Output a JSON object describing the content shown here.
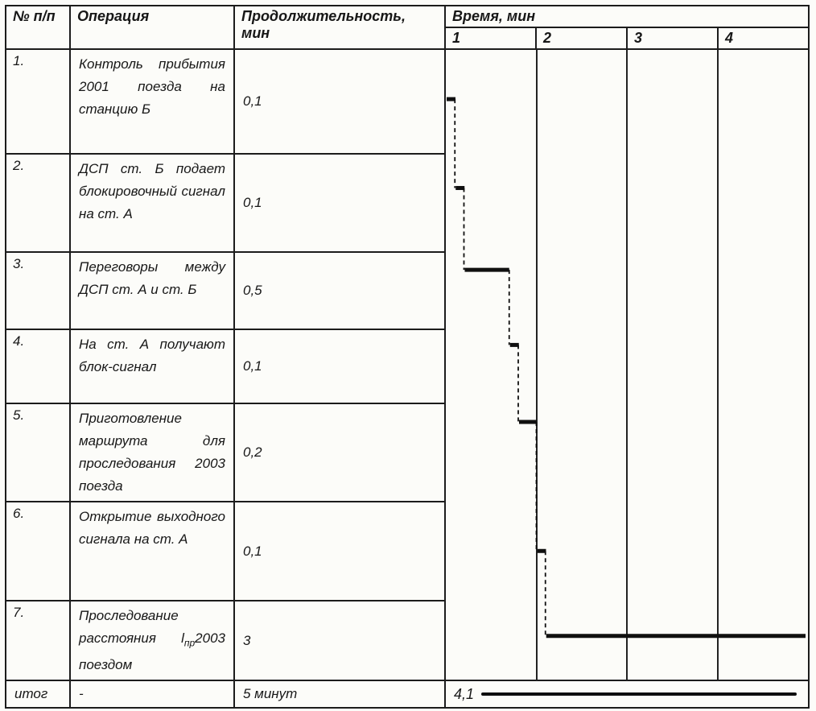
{
  "page": {
    "paper_color": "#fcfcf9",
    "ink_color": "#1c1c1c"
  },
  "header": {
    "num": "№ п/п",
    "operation": "Операция",
    "duration": "Продолжительность, мин",
    "time": "Время, мин",
    "ticks": [
      "1",
      "2",
      "3",
      "4"
    ]
  },
  "rows": [
    {
      "num": "1.",
      "operation": "Контроль прибытия 2001 поезда на станцию Б",
      "duration": "0,1"
    },
    {
      "num": "2.",
      "operation": "ДСП ст. Б подает блокировочный сигнал на ст. А",
      "duration": "0,1"
    },
    {
      "num": "3.",
      "operation": "Переговоры между ДСП ст. А и ст. Б",
      "duration": "0,5"
    },
    {
      "num": "4.",
      "operation": "На ст. А получают блок-сигнал",
      "duration": "0,1"
    },
    {
      "num": "5.",
      "operation": "Приготовление маршрута для проследования 2003 поезда",
      "duration": "0,2"
    },
    {
      "num": "6.",
      "operation": "Открытие выходного сигнала на ст. А",
      "duration": "0,1"
    },
    {
      "num": "7.",
      "operation_prefix": "Проследование расстояния l",
      "operation_sub": "пр",
      "operation_suffix": "2003 поездом",
      "duration": "3"
    }
  ],
  "footer": {
    "num": "итог",
    "operation": "-",
    "duration": "5 минут",
    "total": "4,1"
  },
  "chart_data": {
    "type": "gantt",
    "title": "Время, мин",
    "axis": {
      "label": "Время, мин",
      "ticks": [
        1,
        2,
        3,
        4
      ],
      "total_minutes": 4
    },
    "operations": [
      {
        "name": "Контроль прибытия 2001 поезда на станцию Б",
        "start_min": 0.0,
        "duration_min": 0.1
      },
      {
        "name": "ДСП ст. Б подает блокировочный сигнал на ст. А",
        "start_min": 0.1,
        "duration_min": 0.1
      },
      {
        "name": "Переговоры между ДСП ст. А и ст. Б",
        "start_min": 0.2,
        "duration_min": 0.5
      },
      {
        "name": "На ст. А получают блок-сигнал",
        "start_min": 0.7,
        "duration_min": 0.1
      },
      {
        "name": "Приготовление маршрута для проследования 2003 поезда",
        "start_min": 0.8,
        "duration_min": 0.2
      },
      {
        "name": "Открытие выходного сигнала на ст. А",
        "start_min": 1.0,
        "duration_min": 0.1
      },
      {
        "name": "Проследование расстояния lпр 2003 поездом",
        "start_min": 1.1,
        "duration_min": 3.0
      }
    ],
    "total_min": 4.1,
    "total_label": "4,1",
    "total_duration_label": "5 минут",
    "layout": {
      "grid": "vertical-minute-lines",
      "legend": "none",
      "connector_style": "dashed-vertical",
      "bar_row_fraction": [
        0.47,
        0.34,
        0.22,
        0.2,
        0.18,
        0.49,
        0.43
      ]
    }
  }
}
